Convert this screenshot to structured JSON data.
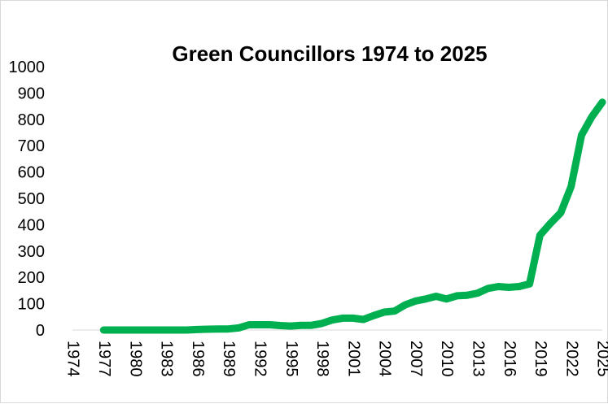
{
  "chart_data": {
    "type": "line",
    "title": "Green Councillors 1974 to 2025",
    "xlabel": "",
    "ylabel": "",
    "ylim": [
      0,
      1000
    ],
    "yticks": [
      0,
      100,
      200,
      300,
      400,
      500,
      600,
      700,
      800,
      900,
      1000
    ],
    "xlim": [
      1974,
      2025
    ],
    "xticks": [
      1974,
      1977,
      1980,
      1983,
      1986,
      1989,
      1992,
      1995,
      1998,
      2001,
      2004,
      2007,
      2010,
      2013,
      2016,
      2019,
      2022,
      2025
    ],
    "grid": false,
    "legend": "none",
    "series": [
      {
        "color": "#00b050",
        "x": [
          1977,
          1978,
          1979,
          1980,
          1981,
          1982,
          1983,
          1984,
          1985,
          1986,
          1987,
          1988,
          1989,
          1990,
          1991,
          1992,
          1993,
          1994,
          1995,
          1996,
          1997,
          1998,
          1999,
          2000,
          2001,
          2002,
          2003,
          2004,
          2005,
          2006,
          2007,
          2008,
          2009,
          2010,
          2011,
          2012,
          2013,
          2014,
          2015,
          2016,
          2017,
          2018,
          2019,
          2020,
          2021,
          2022,
          2023,
          2024,
          2025
        ],
        "y": [
          0,
          0,
          0,
          0,
          0,
          0,
          0,
          0,
          0,
          2,
          3,
          4,
          4,
          8,
          20,
          20,
          20,
          17,
          15,
          18,
          18,
          25,
          38,
          45,
          45,
          40,
          55,
          68,
          72,
          95,
          110,
          118,
          128,
          118,
          130,
          132,
          140,
          158,
          165,
          162,
          165,
          175,
          360,
          405,
          445,
          545,
          740,
          810,
          865
        ]
      }
    ]
  }
}
